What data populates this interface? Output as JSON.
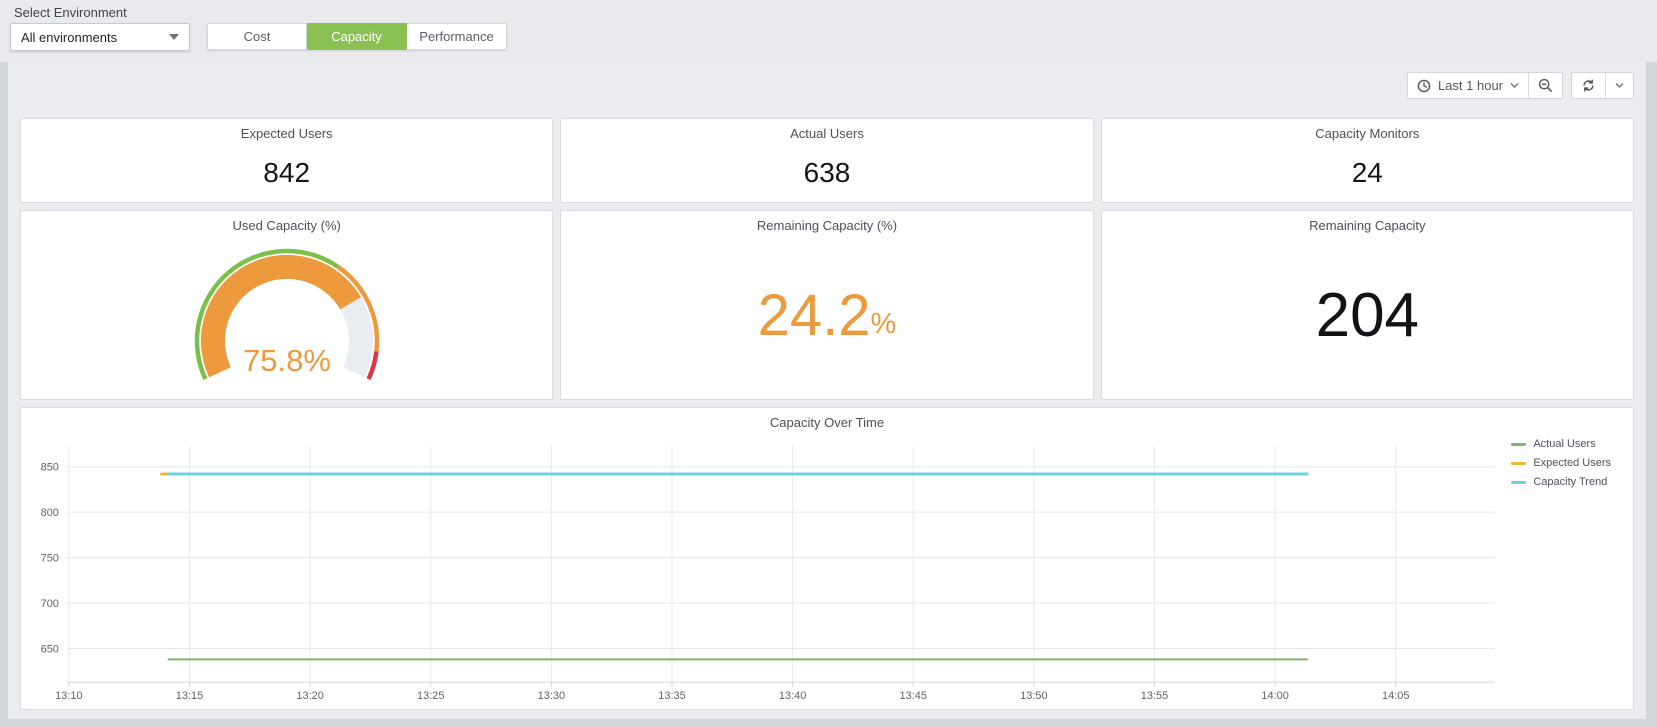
{
  "env_bar": {
    "label": "Select Environment",
    "dropdown": {
      "value": "All environments",
      "icon": "caret-down-icon"
    },
    "tabs": [
      {
        "label": "Cost",
        "active": false
      },
      {
        "label": "Capacity",
        "active": true
      },
      {
        "label": "Performance",
        "active": false
      }
    ],
    "active_tab_color": "#8BC052"
  },
  "toolbar": {
    "time_range_label": "Last 1 hour",
    "time_range_icon": "clock-icon",
    "buttons": [
      "time-range-picker",
      "zoom-out",
      "refresh",
      "refresh-interval-dropdown"
    ],
    "icons": [
      "clock-icon",
      "chevron-down-icon",
      "zoom-out-icon",
      "refresh-icon",
      "chevron-down-icon"
    ]
  },
  "stat_panels": [
    {
      "title": "Expected Users",
      "value": "842"
    },
    {
      "title": "Actual Users",
      "value": "638"
    },
    {
      "title": "Capacity Monitors",
      "value": "24"
    }
  ],
  "gauge_panel": {
    "title": "Used Capacity (%)",
    "value": 75.8,
    "display": "75.8%",
    "min": 0,
    "max": 100,
    "value_color": "#EC9A3D",
    "track_color": "#E9EDF2",
    "thresholds": [
      {
        "from_pct": 0,
        "color": "#7CC04A"
      },
      {
        "from_pct": 65,
        "color": "#EC9A3D"
      },
      {
        "from_pct": 92,
        "color": "#E0344A"
      }
    ]
  },
  "percent_panel": {
    "title": "Remaining Capacity (%)",
    "value": "24.2",
    "suffix": "%",
    "color": "#EC9A3D"
  },
  "number_panel": {
    "title": "Remaining Capacity",
    "value": "204"
  },
  "chart_data": {
    "type": "line",
    "title": "Capacity Over Time",
    "x_ticks": [
      "13:10",
      "13:15",
      "13:20",
      "13:25",
      "13:30",
      "13:35",
      "13:40",
      "13:45",
      "13:50",
      "13:55",
      "14:00",
      "14:05"
    ],
    "y_ticks": [
      650,
      700,
      750,
      800,
      850
    ],
    "ylim": [
      613,
      873
    ],
    "grid": true,
    "legend_position": "right",
    "series": [
      {
        "name": "Actual Users",
        "color": "#7EB26D",
        "value": 638,
        "shape": "flat-line"
      },
      {
        "name": "Expected Users",
        "color": "#EAB839",
        "value": 842,
        "shape": "flat-line"
      },
      {
        "name": "Capacity Trend",
        "color": "#6ED0E0",
        "value": 842,
        "shape": "flat-line"
      }
    ],
    "data_start_label": "13:14",
    "data_end_label": "14:02"
  }
}
